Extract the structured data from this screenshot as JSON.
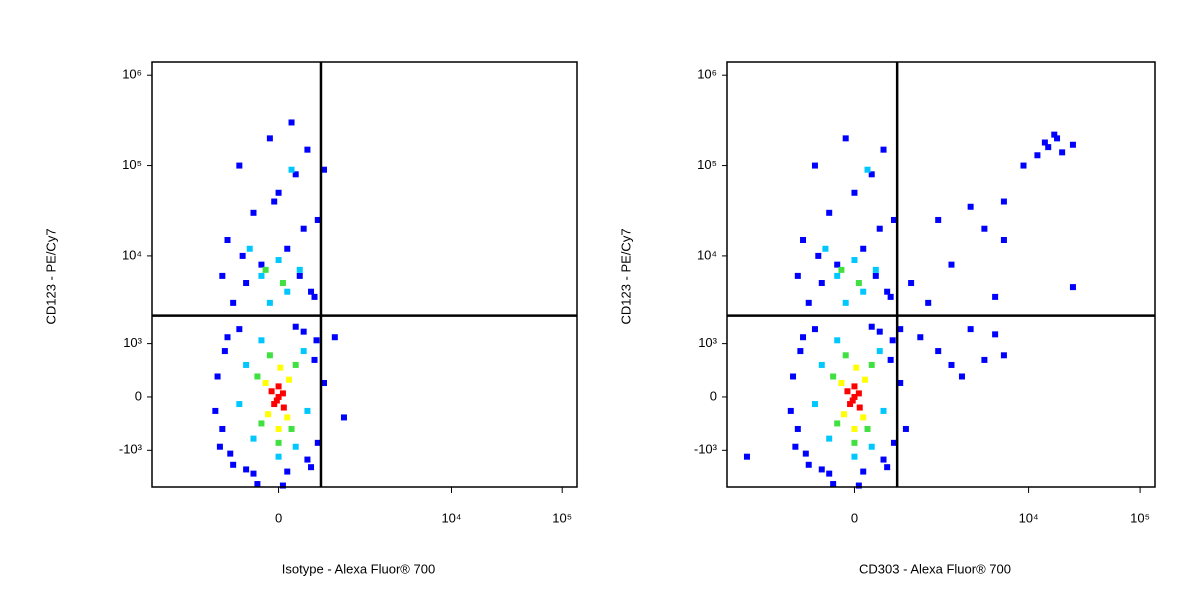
{
  "chart_data": [
    {
      "type": "scatter",
      "x_label": "Isotype - Alexa Fluor® 700",
      "y_label": "CD123 - PE/Cy7",
      "xscale": "biexponential",
      "yscale": "biexponential",
      "xlim": [
        -3800,
        136000
      ],
      "ylim": [
        -2700,
        1400000
      ],
      "xticks": [
        0,
        {
          "value": 10000,
          "label": "10⁴"
        },
        {
          "value": 100000,
          "label": "10⁵"
        }
      ],
      "yticks": [
        {
          "value": 1000000,
          "label": "10⁶"
        },
        {
          "value": 100000,
          "label": "10⁵"
        },
        {
          "value": 10000,
          "label": "10⁴"
        },
        {
          "value": 1000,
          "label": "10³"
        },
        0,
        {
          "value": -1000,
          "label": "-10³"
        }
      ],
      "gates": {
        "x": 550,
        "y": 2150
      },
      "series": [
        {
          "color": "#0000ff",
          "x": [
            -800,
            -900,
            -700,
            -600,
            -500,
            400,
            500,
            450,
            300,
            -300,
            100,
            -950,
            600,
            -750,
            350,
            200,
            -400,
            -650,
            480,
            -850,
            -600,
            -400,
            -200,
            100,
            300,
            400,
            -700,
            -300,
            0,
            200,
            -500,
            350,
            150,
            -100,
            450,
            -800,
            500,
            -50,
            250,
            -450,
            800,
            1000,
            600,
            -250,
            50
          ],
          "y": [
            -500,
            300,
            1200,
            -1500,
            1500,
            -1600,
            -800,
            600,
            1400,
            -1900,
            -1800,
            -200,
            200,
            800,
            -1300,
            1600,
            -1700,
            -1100,
            1100,
            -900,
            3000,
            5000,
            8000,
            12000,
            20000,
            4000,
            15000,
            30000,
            50000,
            80000,
            100000,
            150000,
            300000,
            200000,
            3500,
            6000,
            25000,
            40000,
            6000,
            10000,
            1200,
            -300,
            90000,
            -2500,
            -2600
          ]
        },
        {
          "color": "#00c8ff",
          "x": [
            -300,
            200,
            -400,
            300,
            0,
            -200,
            350,
            -500,
            -200,
            100,
            0,
            -100,
            250,
            -350,
            150
          ],
          "y": [
            -700,
            -900,
            500,
            800,
            -1200,
            1100,
            -200,
            -100,
            6000,
            4000,
            9000,
            3000,
            7000,
            12000,
            90000
          ]
        },
        {
          "color": "#40e040",
          "x": [
            -200,
            150,
            -250,
            200,
            0,
            -100,
            50,
            -150
          ],
          "y": [
            -400,
            -500,
            300,
            500,
            -800,
            700,
            5000,
            7000
          ]
        },
        {
          "color": "#ffff00",
          "x": [
            -120,
            100,
            -150,
            120,
            0,
            20
          ],
          "y": [
            -250,
            -300,
            200,
            250,
            -500,
            450
          ]
        },
        {
          "color": "#ff0000",
          "x": [
            -50,
            50,
            0,
            -80,
            60,
            0,
            -20
          ],
          "y": [
            -100,
            50,
            150,
            80,
            -150,
            0,
            -50
          ]
        }
      ]
    },
    {
      "type": "scatter",
      "x_label": "CD303 - Alexa Fluor® 700",
      "y_label": "CD123 - PE/Cy7",
      "xscale": "biexponential",
      "yscale": "biexponential",
      "xlim": [
        -3800,
        136000
      ],
      "ylim": [
        -2700,
        1400000
      ],
      "xticks": [
        0,
        {
          "value": 10000,
          "label": "10⁴"
        },
        {
          "value": 100000,
          "label": "10⁵"
        }
      ],
      "yticks": [
        {
          "value": 1000000,
          "label": "10⁶"
        },
        {
          "value": 100000,
          "label": "10⁵"
        },
        {
          "value": 10000,
          "label": "10⁴"
        },
        {
          "value": 1000,
          "label": "10³"
        },
        0,
        {
          "value": -1000,
          "label": "-10³"
        }
      ],
      "gates": {
        "x": 550,
        "y": 2150
      },
      "series": [
        {
          "color": "#0000ff",
          "x": [
            -800,
            -900,
            -700,
            -600,
            -500,
            400,
            500,
            450,
            300,
            -300,
            100,
            -950,
            600,
            -750,
            350,
            200,
            -400,
            -650,
            480,
            -850,
            -600,
            -400,
            -200,
            100,
            300,
            400,
            -700,
            -300,
            0,
            200,
            -500,
            350,
            -100,
            450,
            -800,
            500,
            250,
            -450,
            -250,
            50,
            12000,
            15000,
            18000,
            20000,
            14000,
            9000,
            25000,
            17000,
            600,
            1000,
            1500,
            3000,
            4000,
            5000,
            6000,
            2000,
            2500,
            1200,
            800,
            2000,
            4000,
            3000,
            6000,
            6000,
            5000,
            25000,
            1500,
            -2500,
            700
          ],
          "y": [
            -500,
            300,
            1200,
            -1500,
            1500,
            -1600,
            -800,
            600,
            1400,
            -1900,
            -1800,
            -200,
            200,
            800,
            -1300,
            1600,
            -1700,
            -1100,
            1100,
            -900,
            3000,
            5000,
            8000,
            12000,
            20000,
            4000,
            15000,
            30000,
            50000,
            80000,
            100000,
            150000,
            200000,
            3500,
            6000,
            25000,
            6000,
            10000,
            -2500,
            -2600,
            130000,
            160000,
            200000,
            140000,
            180000,
            100000,
            170000,
            220000,
            1500,
            1200,
            800,
            1500,
            600,
            1300,
            700,
            500,
            300,
            3000,
            5000,
            8000,
            20000,
            35000,
            40000,
            15000,
            3500,
            4500,
            25000,
            -1200,
            -500
          ]
        },
        {
          "color": "#00c8ff",
          "x": [
            -300,
            200,
            -400,
            300,
            0,
            -200,
            350,
            -500,
            -200,
            100,
            0,
            -100,
            250,
            -350,
            150
          ],
          "y": [
            -700,
            -900,
            500,
            800,
            -1200,
            1100,
            -200,
            -100,
            6000,
            4000,
            9000,
            3000,
            7000,
            12000,
            90000
          ]
        },
        {
          "color": "#40e040",
          "x": [
            -200,
            150,
            -250,
            200,
            0,
            -100,
            50,
            -150
          ],
          "y": [
            -400,
            -500,
            300,
            500,
            -800,
            700,
            5000,
            7000
          ]
        },
        {
          "color": "#ffff00",
          "x": [
            -120,
            100,
            -150,
            120,
            0,
            20
          ],
          "y": [
            -250,
            -300,
            200,
            250,
            -500,
            450
          ]
        },
        {
          "color": "#ff0000",
          "x": [
            -50,
            50,
            0,
            -80,
            60,
            0,
            -20
          ],
          "y": [
            -100,
            50,
            150,
            80,
            -150,
            0,
            -50
          ]
        }
      ]
    }
  ]
}
